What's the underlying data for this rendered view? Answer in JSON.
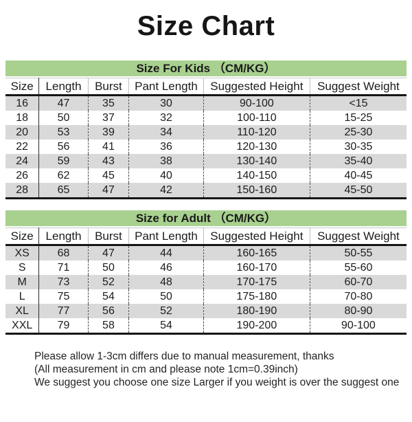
{
  "title": "Size Chart",
  "colors": {
    "band_green": "#a8d08f",
    "row_gray": "#d9d9d9",
    "text": "#1c1c1c"
  },
  "chart_data": [
    {
      "type": "table",
      "title": "Size For Kids （CM/KG）",
      "columns": [
        "Size",
        "Length",
        "Burst",
        "Pant Length",
        "Suggested Height",
        "Suggest Weight"
      ],
      "rows": [
        [
          "16",
          "47",
          "35",
          "30",
          "90-100",
          "<15"
        ],
        [
          "18",
          "50",
          "37",
          "32",
          "100-110",
          "15-25"
        ],
        [
          "20",
          "53",
          "39",
          "34",
          "110-120",
          "25-30"
        ],
        [
          "22",
          "56",
          "41",
          "36",
          "120-130",
          "30-35"
        ],
        [
          "24",
          "59",
          "43",
          "38",
          "130-140",
          "35-40"
        ],
        [
          "26",
          "62",
          "45",
          "40",
          "140-150",
          "40-45"
        ],
        [
          "28",
          "65",
          "47",
          "42",
          "150-160",
          "45-50"
        ]
      ]
    },
    {
      "type": "table",
      "title": "Size for Adult （CM/KG）",
      "columns": [
        "Size",
        "Length",
        "Burst",
        "Pant Length",
        "Suggested Height",
        "Suggest Weight"
      ],
      "rows": [
        [
          "XS",
          "68",
          "47",
          "44",
          "160-165",
          "50-55"
        ],
        [
          "S",
          "71",
          "50",
          "46",
          "160-170",
          "55-60"
        ],
        [
          "M",
          "73",
          "52",
          "48",
          "170-175",
          "60-70"
        ],
        [
          "L",
          "75",
          "54",
          "50",
          "175-180",
          "70-80"
        ],
        [
          "XL",
          "77",
          "56",
          "52",
          "180-190",
          "80-90"
        ],
        [
          "XXL",
          "79",
          "58",
          "54",
          "190-200",
          "90-100"
        ]
      ]
    }
  ],
  "notes": [
    "Please allow 1-3cm differs due to manual measurement, thanks",
    "(All measurement in cm and please note 1cm=0.39inch)",
    "We suggest you choose one size Larger if you weight is over the suggest one"
  ]
}
